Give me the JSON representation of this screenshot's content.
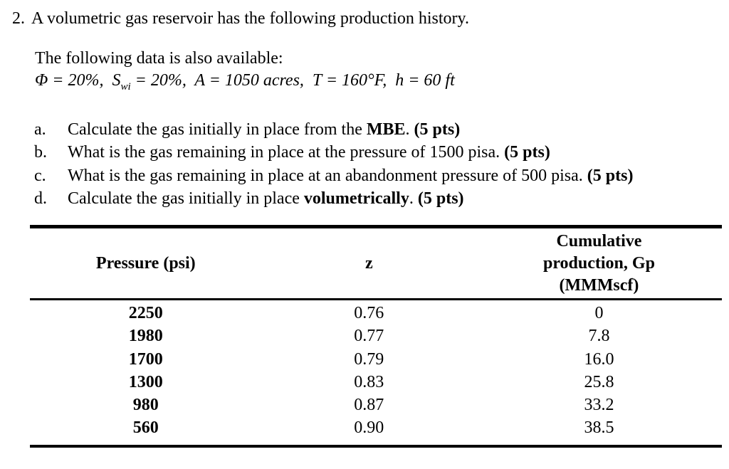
{
  "page": {
    "background_color": "#ffffff",
    "text_color": "#000000"
  },
  "problem": {
    "number": "2.",
    "statement": "A volumetric gas reservoir has the following production history.",
    "intro": "The following data is also available:",
    "given_segments": [
      {
        "t": "Φ = 20%,  S"
      },
      {
        "t": "wi",
        "sub": true
      },
      {
        "t": " = 20%,  A = 1050 acres,  T = 160°F,  h = 60 ft"
      }
    ]
  },
  "questions": [
    {
      "label": "a.",
      "segments": [
        {
          "t": "Calculate the gas initially in place from the "
        },
        {
          "t": "MBE",
          "b": true
        },
        {
          "t": ". "
        },
        {
          "t": "(5 pts)",
          "b": true
        }
      ]
    },
    {
      "label": "b.",
      "segments": [
        {
          "t": "What is the gas remaining in place at the pressure of 1500 pisa. "
        },
        {
          "t": "(5 pts)",
          "b": true
        }
      ]
    },
    {
      "label": "c.",
      "segments": [
        {
          "t": "What is the gas remaining in place at an abandonment pressure of 500 pisa. "
        },
        {
          "t": "(5 pts)",
          "b": true
        }
      ]
    },
    {
      "label": "d.",
      "segments": [
        {
          "t": "Calculate the gas initially in place "
        },
        {
          "t": "volumetrically",
          "b": true
        },
        {
          "t": ". "
        },
        {
          "t": "(5 pts)",
          "b": true
        }
      ]
    }
  ],
  "table": {
    "headers": [
      {
        "name": "pressure-column-header",
        "lines": [
          "Pressure (psi)"
        ]
      },
      {
        "name": "z-factor-column-header",
        "lines": [
          "z"
        ]
      },
      {
        "name": "cumulative-production-column-header",
        "lines": [
          "Cumulative",
          "production, Gp",
          "(MMMscf)"
        ]
      }
    ],
    "cell_names": [
      "pressure-cell",
      "z-factor-cell",
      "cumulative-production-cell"
    ],
    "rows": [
      [
        "2250",
        "0.76",
        "0"
      ],
      [
        "1980",
        "0.77",
        "7.8"
      ],
      [
        "1700",
        "0.79",
        "16.0"
      ],
      [
        "1300",
        "0.83",
        "25.8"
      ],
      [
        "980",
        "0.87",
        "33.2"
      ],
      [
        "560",
        "0.90",
        "38.5"
      ]
    ]
  }
}
